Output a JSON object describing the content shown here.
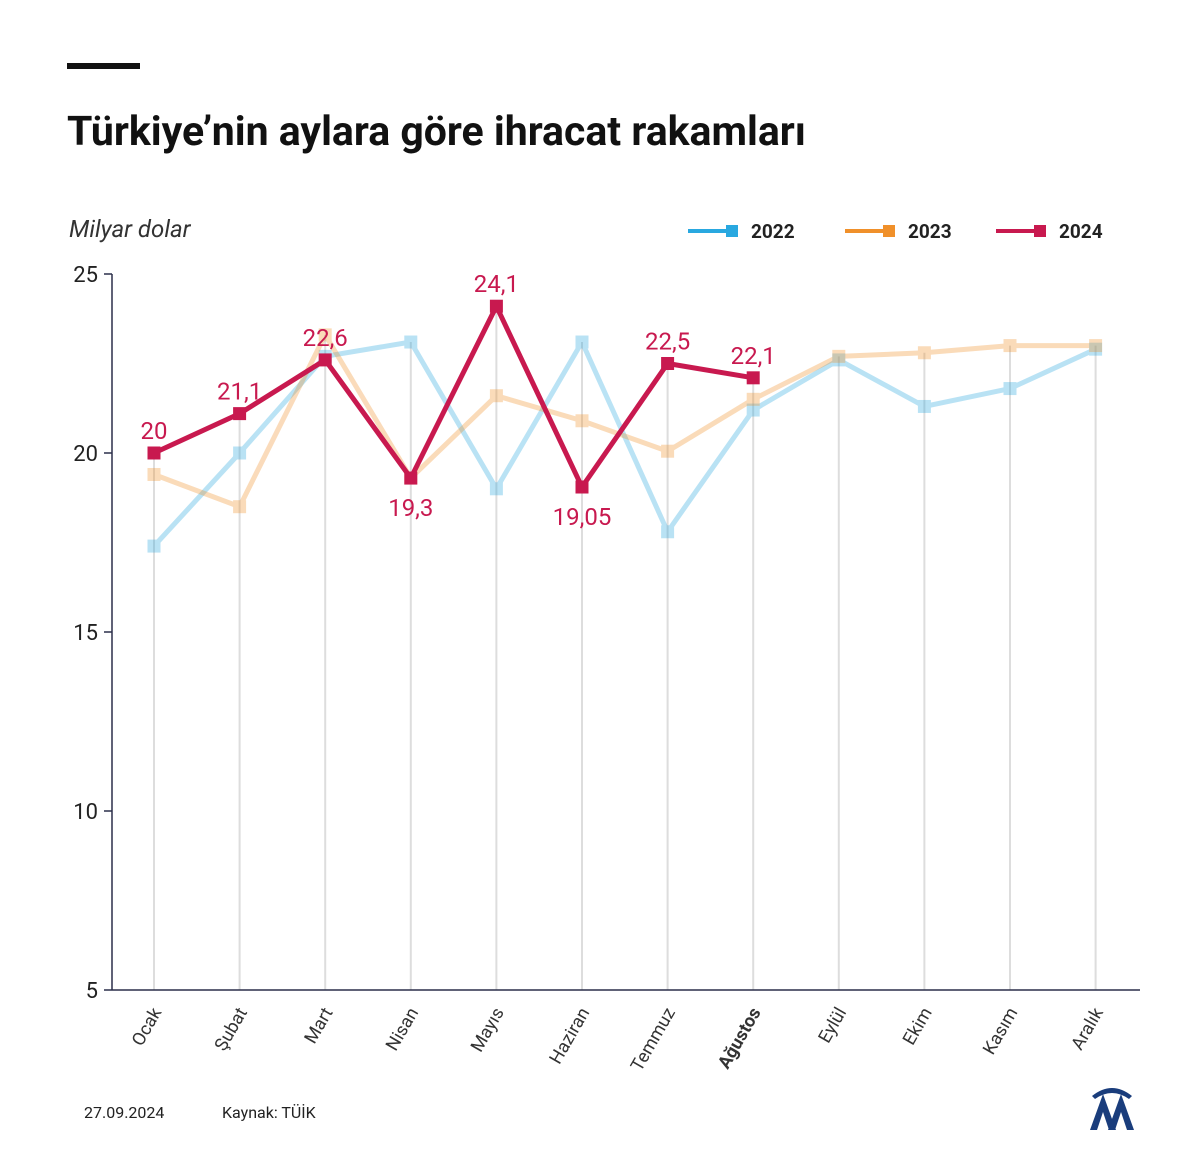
{
  "chart_data": {
    "type": "line",
    "title": "Türkiye’nin aylara göre ihracat rakamları",
    "y_label": "Milyar dolar",
    "categories": [
      "Ocak",
      "Şubat",
      "Mart",
      "Nisan",
      "Mayıs",
      "Haziran",
      "Temmuz",
      "Ağustos",
      "Eylül",
      "Ekim",
      "Kasım",
      "Aralık"
    ],
    "series": [
      {
        "name": "2022",
        "color": "#29a8e0",
        "values": [
          17.4,
          20.0,
          22.7,
          23.1,
          19.0,
          23.1,
          17.8,
          21.2,
          22.6,
          21.3,
          21.8,
          22.9
        ]
      },
      {
        "name": "2023",
        "color": "#f0902a",
        "values": [
          19.4,
          18.5,
          23.3,
          19.3,
          21.6,
          20.9,
          20.05,
          21.5,
          22.7,
          22.8,
          23.0,
          23.0
        ]
      },
      {
        "name": "2024",
        "color": "#c8194f",
        "values": [
          20,
          21.1,
          22.6,
          19.3,
          24.1,
          19.05,
          22.5,
          22.1,
          null,
          null,
          null,
          null
        ],
        "value_labels": [
          "20",
          "21,1",
          "22,6",
          "19,3",
          "24,1",
          "19,05",
          "22,5",
          "22,1",
          null,
          null,
          null,
          null
        ]
      }
    ],
    "ylim": [
      5,
      25
    ],
    "yticks": [
      5,
      10,
      15,
      20,
      25
    ],
    "date": "27.09.2024",
    "source": "Kaynak: TÜİK"
  }
}
